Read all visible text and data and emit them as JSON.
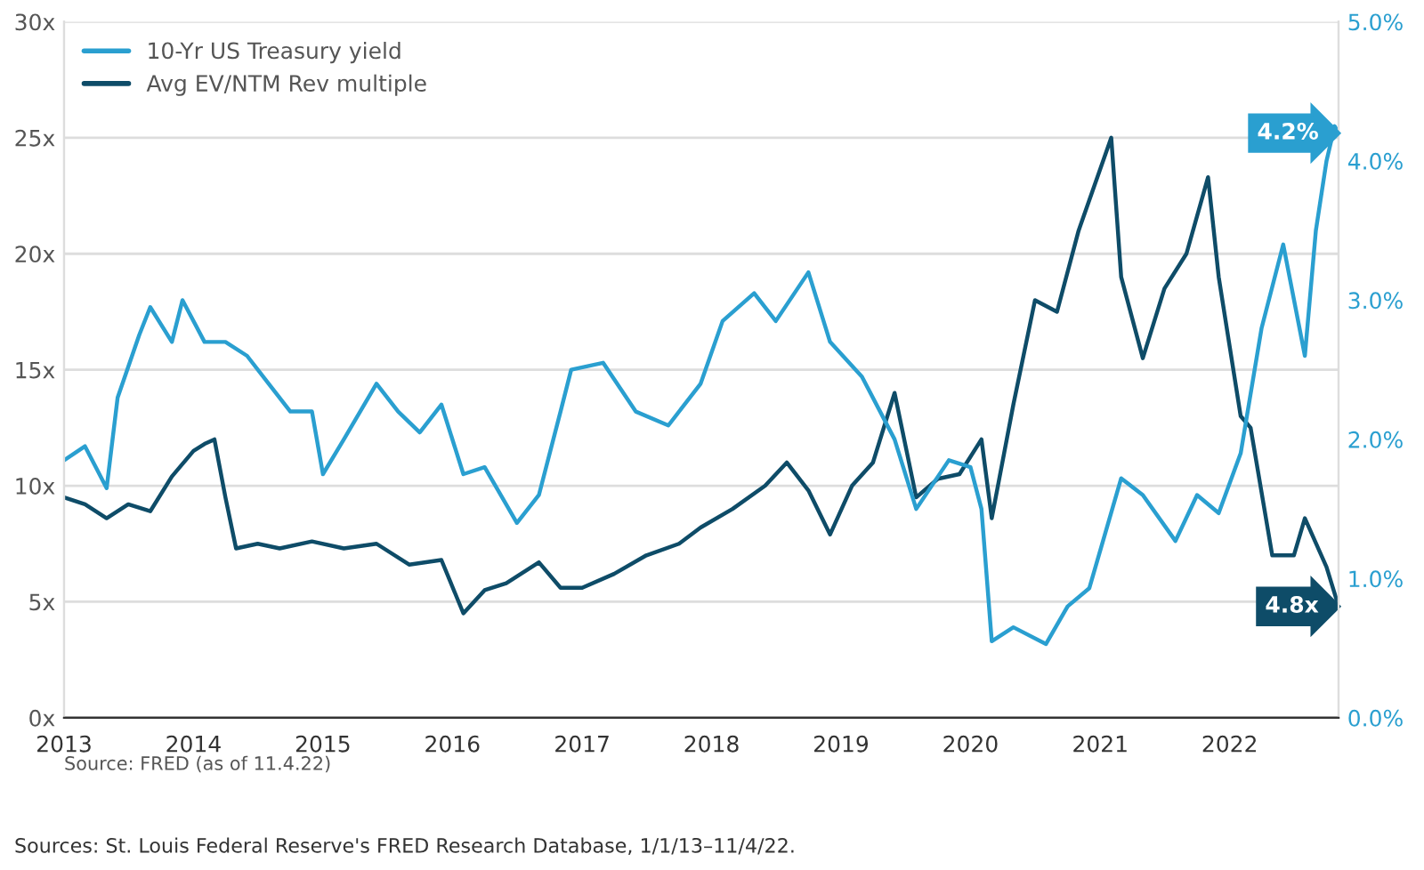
{
  "chart_data": {
    "type": "line",
    "x": [
      "2013-01",
      "2013-03",
      "2013-05",
      "2013-06",
      "2013-08",
      "2013-09",
      "2013-11",
      "2013-12",
      "2014-02",
      "2014-04",
      "2014-06",
      "2014-08",
      "2014-10",
      "2014-12",
      "2015-01",
      "2015-03",
      "2015-06",
      "2015-08",
      "2015-10",
      "2015-12",
      "2016-02",
      "2016-04",
      "2016-07",
      "2016-09",
      "2016-11",
      "2016-12",
      "2017-03",
      "2017-06",
      "2017-09",
      "2017-12",
      "2018-02",
      "2018-05",
      "2018-07",
      "2018-10",
      "2018-12",
      "2019-03",
      "2019-06",
      "2019-08",
      "2019-11",
      "2020-01",
      "2020-02",
      "2020-03",
      "2020-05",
      "2020-08",
      "2020-10",
      "2020-12",
      "2021-03",
      "2021-05",
      "2021-08",
      "2021-10",
      "2021-12",
      "2022-02",
      "2022-04",
      "2022-06",
      "2022-08",
      "2022-09",
      "2022-10",
      "2022-10-24",
      "2022-11-04"
    ],
    "series": [
      {
        "name": "10-Yr US Treasury yield",
        "color": "#2a9fd0",
        "axis": "y2",
        "values": [
          1.85,
          1.95,
          1.65,
          2.3,
          2.75,
          2.95,
          2.7,
          3.0,
          2.7,
          2.7,
          2.6,
          2.4,
          2.2,
          2.2,
          1.75,
          2.0,
          2.4,
          2.2,
          2.05,
          2.25,
          1.75,
          1.8,
          1.4,
          1.6,
          2.2,
          2.5,
          2.55,
          2.2,
          2.1,
          2.4,
          2.85,
          3.05,
          2.85,
          3.2,
          2.7,
          2.45,
          2.0,
          1.5,
          1.85,
          1.8,
          1.5,
          0.55,
          0.65,
          0.53,
          0.8,
          0.93,
          1.72,
          1.6,
          1.27,
          1.6,
          1.47,
          1.9,
          2.8,
          3.4,
          2.6,
          3.5,
          4.0,
          4.25,
          4.2
        ]
      },
      {
        "name": "Avg EV/NTM Rev multiple",
        "color": "#0e4c68",
        "axis": "y",
        "x": [
          "2013-01",
          "2013-03",
          "2013-05",
          "2013-07",
          "2013-09",
          "2013-11",
          "2014-01",
          "2014-02",
          "2014-03",
          "2014-04",
          "2014-05",
          "2014-07",
          "2014-09",
          "2014-12",
          "2015-03",
          "2015-06",
          "2015-09",
          "2015-12",
          "2016-02",
          "2016-04",
          "2016-06",
          "2016-09",
          "2016-11",
          "2017-01",
          "2017-04",
          "2017-07",
          "2017-10",
          "2017-12",
          "2018-03",
          "2018-06",
          "2018-08",
          "2018-10",
          "2018-12",
          "2019-02",
          "2019-04",
          "2019-06",
          "2019-08",
          "2019-10",
          "2019-12",
          "2020-02",
          "2020-03",
          "2020-05",
          "2020-07",
          "2020-09",
          "2020-11",
          "2021-02",
          "2021-03",
          "2021-05",
          "2021-07",
          "2021-09",
          "2021-11",
          "2021-12",
          "2022-01",
          "2022-02",
          "2022-03",
          "2022-05",
          "2022-07",
          "2022-08",
          "2022-10",
          "2022-11-04"
        ],
        "values": [
          9.5,
          9.2,
          8.6,
          9.2,
          8.9,
          10.4,
          11.5,
          11.8,
          12.0,
          9.5,
          7.3,
          7.5,
          7.3,
          7.6,
          7.3,
          7.5,
          6.6,
          6.8,
          4.5,
          5.5,
          5.8,
          6.7,
          5.6,
          5.6,
          6.2,
          7.0,
          7.5,
          8.2,
          9.0,
          10.0,
          11.0,
          9.8,
          7.9,
          10.0,
          11.0,
          14.0,
          9.5,
          10.3,
          10.5,
          12.0,
          8.6,
          13.5,
          18.0,
          17.5,
          21.0,
          25.0,
          19.0,
          15.5,
          18.5,
          20.0,
          23.3,
          19.0,
          16.0,
          13.0,
          12.5,
          7.0,
          7.0,
          8.6,
          6.5,
          4.8
        ]
      }
    ],
    "xlim": [
      "2013-01-01",
      "2022-11-04"
    ],
    "xticks": [
      {
        "value": "2013-01-01",
        "label": "2013"
      },
      {
        "value": "2014-01-01",
        "label": "2014"
      },
      {
        "value": "2015-01-01",
        "label": "2015"
      },
      {
        "value": "2016-01-01",
        "label": "2016"
      },
      {
        "value": "2017-01-01",
        "label": "2017"
      },
      {
        "value": "2018-01-01",
        "label": "2018"
      },
      {
        "value": "2019-01-01",
        "label": "2019"
      },
      {
        "value": "2020-01-01",
        "label": "2020"
      },
      {
        "value": "2021-01-01",
        "label": "2021"
      },
      {
        "value": "2022-01-01",
        "label": "2022"
      }
    ],
    "ylim": [
      0,
      30
    ],
    "yticks": [
      {
        "value": 0,
        "label": "0x"
      },
      {
        "value": 5,
        "label": "5x"
      },
      {
        "value": 10,
        "label": "10x"
      },
      {
        "value": 15,
        "label": "15x"
      },
      {
        "value": 20,
        "label": "20x"
      },
      {
        "value": 25,
        "label": "25x"
      },
      {
        "value": 30,
        "label": "30x"
      }
    ],
    "y2lim": [
      0,
      5
    ],
    "y2ticks": [
      {
        "value": 0,
        "label": "0.0%"
      },
      {
        "value": 1,
        "label": "1.0%"
      },
      {
        "value": 2,
        "label": "2.0%"
      },
      {
        "value": 3,
        "label": "3.0%"
      },
      {
        "value": 4,
        "label": "4.0%"
      },
      {
        "value": 5,
        "label": "5.0%"
      }
    ],
    "grid": "y",
    "legend": "top left",
    "line_style": "solid",
    "annotations": [
      "4.2%",
      "4.8x",
      "Source: FRED (as of 11.4.22)",
      "Sources: St. Louis Federal Reserve's FRED Research Database, 1/1/13–11/4/22."
    ]
  }
}
